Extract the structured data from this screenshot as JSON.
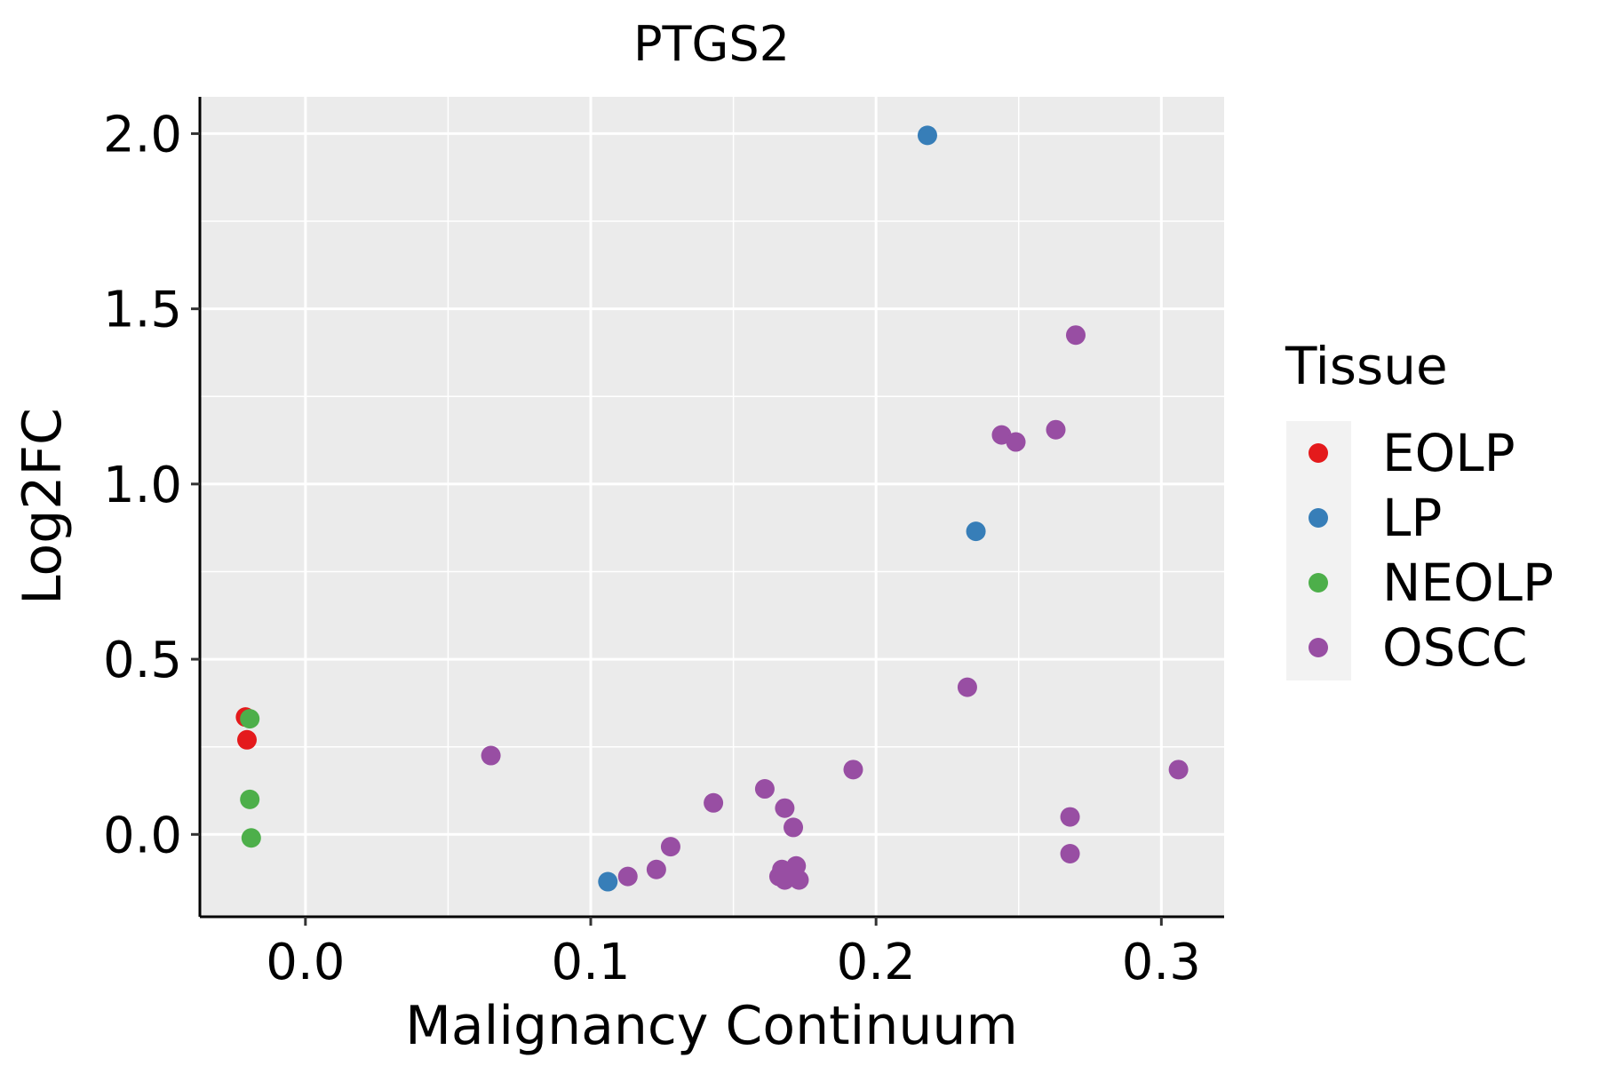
{
  "chart_data": {
    "type": "scatter",
    "title": "PTGS2",
    "xlabel": "Malignancy Continuum",
    "ylabel": "Log2FC",
    "xlim": [
      -0.037,
      0.322
    ],
    "ylim": [
      -0.235,
      2.105
    ],
    "x_ticks": [
      {
        "value": 0.0,
        "label": "0.0"
      },
      {
        "value": 0.1,
        "label": "0.1"
      },
      {
        "value": 0.2,
        "label": "0.2"
      },
      {
        "value": 0.3,
        "label": "0.3"
      }
    ],
    "y_ticks": [
      {
        "value": 0.0,
        "label": "0.0"
      },
      {
        "value": 0.5,
        "label": "0.5"
      },
      {
        "value": 1.0,
        "label": "1.0"
      },
      {
        "value": 1.5,
        "label": "1.5"
      },
      {
        "value": 2.0,
        "label": "2.0"
      }
    ],
    "x_minor_grid": [
      0.05,
      0.15,
      0.25
    ],
    "y_minor_grid": [
      0.25,
      0.75,
      1.25,
      1.75
    ],
    "grid": true,
    "panel_color": "#EBEBEB",
    "legend": {
      "title": "Tissue",
      "position": "right",
      "entries": [
        {
          "name": "EOLP",
          "color": "#E41A1C"
        },
        {
          "name": "LP",
          "color": "#377EB8"
        },
        {
          "name": "NEOLP",
          "color": "#4DAF4A"
        },
        {
          "name": "OSCC",
          "color": "#984EA3"
        }
      ]
    },
    "series": [
      {
        "name": "EOLP",
        "color": "#E41A1C",
        "points": [
          {
            "x": -0.021,
            "y": 0.335
          },
          {
            "x": -0.0205,
            "y": 0.27
          }
        ]
      },
      {
        "name": "LP",
        "color": "#377EB8",
        "points": [
          {
            "x": 0.218,
            "y": 1.995
          },
          {
            "x": 0.235,
            "y": 0.865
          },
          {
            "x": 0.106,
            "y": -0.135
          }
        ]
      },
      {
        "name": "NEOLP",
        "color": "#4DAF4A",
        "points": [
          {
            "x": -0.0195,
            "y": 0.33
          },
          {
            "x": -0.0195,
            "y": 0.1
          },
          {
            "x": -0.019,
            "y": -0.01
          }
        ]
      },
      {
        "name": "OSCC",
        "color": "#984EA3",
        "points": [
          {
            "x": 0.27,
            "y": 1.425
          },
          {
            "x": 0.244,
            "y": 1.14
          },
          {
            "x": 0.249,
            "y": 1.12
          },
          {
            "x": 0.263,
            "y": 1.155
          },
          {
            "x": 0.232,
            "y": 0.42
          },
          {
            "x": 0.306,
            "y": 0.185
          },
          {
            "x": 0.192,
            "y": 0.185
          },
          {
            "x": 0.065,
            "y": 0.225
          },
          {
            "x": 0.161,
            "y": 0.13
          },
          {
            "x": 0.143,
            "y": 0.09
          },
          {
            "x": 0.168,
            "y": 0.075
          },
          {
            "x": 0.171,
            "y": 0.02
          },
          {
            "x": 0.268,
            "y": 0.05
          },
          {
            "x": 0.268,
            "y": -0.055
          },
          {
            "x": 0.128,
            "y": -0.035
          },
          {
            "x": 0.123,
            "y": -0.1
          },
          {
            "x": 0.113,
            "y": -0.12
          },
          {
            "x": 0.167,
            "y": -0.1
          },
          {
            "x": 0.172,
            "y": -0.09
          },
          {
            "x": 0.166,
            "y": -0.12
          },
          {
            "x": 0.168,
            "y": -0.13
          },
          {
            "x": 0.173,
            "y": -0.13
          }
        ]
      }
    ]
  }
}
